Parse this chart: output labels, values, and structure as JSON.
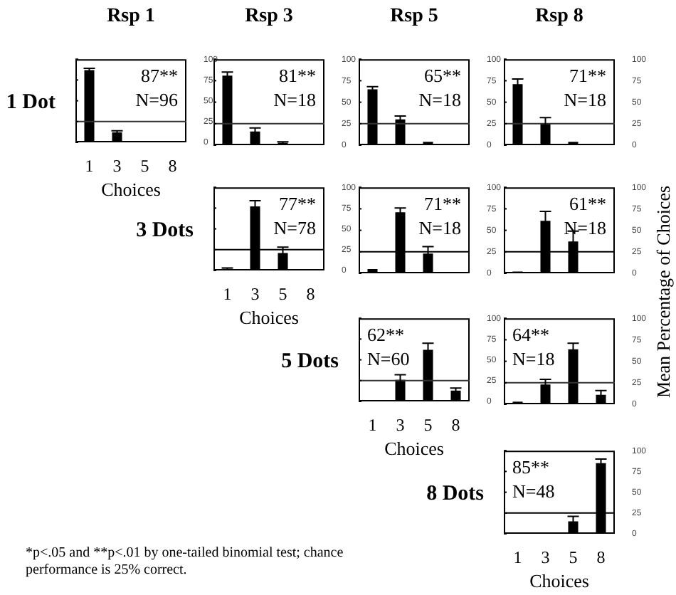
{
  "chart_data": [
    {
      "type": "bar",
      "title": "Rsp 1",
      "ylabel": "1 Dot",
      "xlabel": "Choices",
      "categories": [
        "1",
        "3",
        "5",
        "8"
      ],
      "values": [
        87,
        12,
        1,
        0
      ],
      "errors": [
        2,
        2,
        null,
        null
      ],
      "color": "#000000",
      "ylim": [
        0,
        100
      ],
      "yticks": [
        0,
        25,
        50,
        75,
        100
      ],
      "ref_lines": [
        {
          "axis": "y",
          "value": 25,
          "color": "#333333"
        }
      ],
      "annotations": [
        "87**",
        "N=96"
      ]
    },
    {
      "type": "bar",
      "title": "Rsp 3",
      "categories": [
        "1",
        "3",
        "5",
        "8"
      ],
      "values": [
        81,
        16,
        3,
        0
      ],
      "errors": [
        4,
        4,
        1,
        null
      ],
      "color": "#000000",
      "ylim": [
        0,
        100
      ],
      "yticks": [
        0,
        25,
        50,
        75,
        100
      ],
      "ref_lines": [
        {
          "axis": "y",
          "value": 25,
          "color": "#333333"
        }
      ],
      "annotations": [
        "81**",
        "N=18"
      ],
      "tick_labels": "y"
    },
    {
      "type": "bar",
      "title": "Rsp 5",
      "categories": [
        "1",
        "3",
        "5",
        "8"
      ],
      "values": [
        65,
        30,
        4,
        0
      ],
      "errors": [
        3,
        4,
        null,
        null
      ],
      "color": "#000000",
      "ylim": [
        0,
        100
      ],
      "yticks": [
        0,
        25,
        50,
        75,
        100
      ],
      "ref_lines": [
        {
          "axis": "y",
          "value": 25,
          "color": "#333333"
        }
      ],
      "annotations": [
        "65**",
        "N=18"
      ],
      "tick_labels": "y"
    },
    {
      "type": "bar",
      "title": "Rsp 8",
      "y2label": "Mean Percentage of Choices",
      "categories": [
        "1",
        "3",
        "5",
        "8"
      ],
      "values": [
        71,
        25,
        4,
        0
      ],
      "errors": [
        6,
        7,
        null,
        null
      ],
      "color": "#000000",
      "ylim": [
        0,
        100
      ],
      "yticks": [
        0,
        25,
        50,
        75,
        100
      ],
      "ref_lines": [
        {
          "axis": "y",
          "value": 25,
          "color": "#333333"
        }
      ],
      "annotations": [
        "71**",
        "N=18"
      ],
      "tick_labels": "y"
    },
    {
      "type": "bar",
      "ylabel": "3 Dots",
      "xlabel": "Choices",
      "categories": [
        "1",
        "3",
        "5",
        "8"
      ],
      "values": [
        2,
        77,
        21,
        0
      ],
      "errors": [
        1,
        7,
        7,
        null
      ],
      "color": "#000000",
      "ylim": [
        0,
        100
      ],
      "yticks": [
        0,
        25,
        50,
        75,
        100
      ],
      "ref_lines": [
        {
          "axis": "y",
          "value": 25,
          "color": "#000000"
        }
      ],
      "annotations": [
        "77**",
        "N=78"
      ]
    },
    {
      "type": "bar",
      "categories": [
        "1",
        "3",
        "5",
        "8"
      ],
      "values": [
        5,
        71,
        23,
        0
      ],
      "errors": [
        null,
        5,
        8,
        null
      ],
      "color": "#000000",
      "ylim": [
        0,
        100
      ],
      "yticks": [
        0,
        25,
        50,
        75,
        100
      ],
      "ref_lines": [
        {
          "axis": "y",
          "value": 25,
          "color": "#000000"
        }
      ],
      "annotations": [
        "71**",
        "N=18"
      ],
      "tick_labels": "y"
    },
    {
      "type": "bar",
      "categories": [
        "1",
        "3",
        "5",
        "8"
      ],
      "values": [
        2,
        61,
        37,
        0
      ],
      "errors": [
        null,
        11,
        12,
        null
      ],
      "color": "#000000",
      "ylim": [
        0,
        100
      ],
      "yticks": [
        0,
        25,
        50,
        75,
        100
      ],
      "ref_lines": [
        {
          "axis": "y",
          "value": 25,
          "color": "#000000"
        }
      ],
      "annotations": [
        "61**",
        "N=18"
      ],
      "tick_labels": "y"
    },
    {
      "type": "bar",
      "ylabel": "5 Dots",
      "xlabel": "Choices",
      "categories": [
        "1",
        "3",
        "5",
        "8"
      ],
      "values": [
        0,
        26,
        62,
        13
      ],
      "errors": [
        null,
        6,
        8,
        3
      ],
      "color": "#000000",
      "ylim": [
        0,
        100
      ],
      "yticks": [
        0,
        25,
        50,
        75,
        100
      ],
      "ref_lines": [
        {
          "axis": "y",
          "value": 25,
          "color": "#333333"
        }
      ],
      "annotations": [
        "62**",
        "N=60"
      ]
    },
    {
      "type": "bar",
      "categories": [
        "1",
        "3",
        "5",
        "8"
      ],
      "values": [
        3,
        23,
        64,
        11
      ],
      "errors": [
        null,
        6,
        7,
        5
      ],
      "color": "#000000",
      "ylim": [
        0,
        100
      ],
      "yticks": [
        0,
        25,
        50,
        75,
        100
      ],
      "ref_lines": [
        {
          "axis": "y",
          "value": 25,
          "color": "#333333"
        }
      ],
      "annotations": [
        "64**",
        "N=18"
      ],
      "tick_labels": "y"
    },
    {
      "type": "bar",
      "ylabel": "8 Dots",
      "xlabel": "Choices",
      "categories": [
        "1",
        "3",
        "5",
        "8"
      ],
      "values": [
        0,
        0,
        15,
        85
      ],
      "errors": [
        null,
        null,
        6,
        5
      ],
      "color": "#000000",
      "ylim": [
        0,
        100
      ],
      "yticks": [
        0,
        25,
        50,
        75,
        100
      ],
      "ref_lines": [
        {
          "axis": "y",
          "value": 25,
          "color": "#000000"
        }
      ],
      "annotations": [
        "85**",
        "N=48"
      ]
    },
    {
      "type": "other",
      "annotations": [
        "*p<.05 and **p<.01 by one-tailed binomial test; chance performance is 25% correct."
      ]
    }
  ]
}
